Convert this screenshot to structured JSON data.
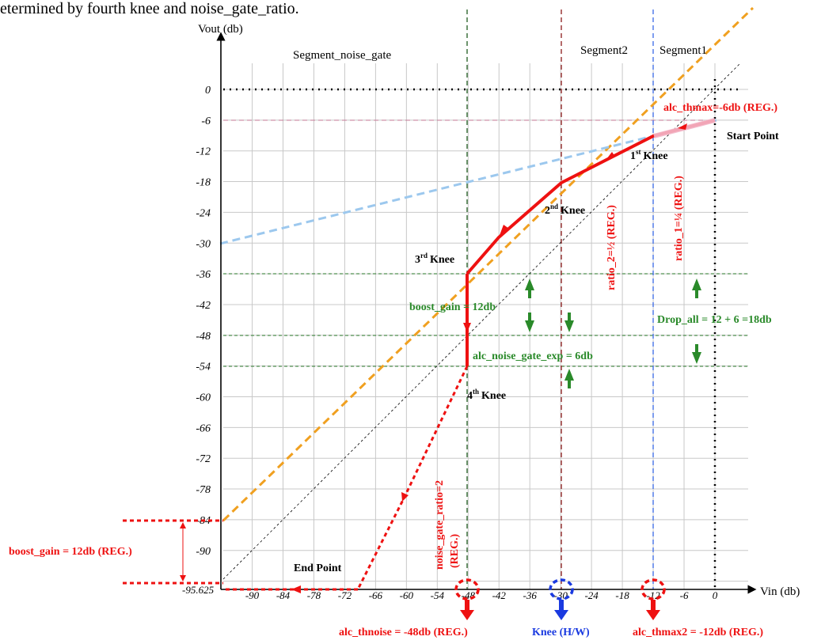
{
  "top_text": "etermined by fourth knee and noise_gate_ratio.",
  "axes": {
    "y_title": "Vout (db)",
    "x_title": "Vin (db)",
    "y_ticks": [
      "0",
      "-6",
      "-12",
      "-18",
      "-24",
      "-30",
      "-36",
      "-42",
      "-48",
      "-54",
      "-60",
      "-66",
      "-72",
      "-78",
      "-84",
      "-90"
    ],
    "x_ticks": [
      "-90",
      "-84",
      "-78",
      "-72",
      "-66",
      "-60",
      "-54",
      "-48",
      "-42",
      "-36",
      "-30",
      "-24",
      "-18",
      "-12",
      "-6",
      "0"
    ],
    "x_origin_label": "-95.625"
  },
  "segments": {
    "noise_gate": "Segment_noise_gate",
    "seg2": "Segment2",
    "seg1": "Segment1"
  },
  "labels": {
    "alc_thmax": "alc_thmax=-6db (REG.)",
    "start_point": "Start Point",
    "knee1": "Knee",
    "knee1_sup": "st",
    "knee1_num": "1",
    "knee2": "Knee",
    "knee2_sup": "nd",
    "knee2_num": "2",
    "knee3": "Knee",
    "knee3_sup": "rd",
    "knee3_num": "3",
    "knee4": "Knee",
    "knee4_sup": "th",
    "knee4_num": "4",
    "ratio2": "ratio_2=½ (REG.)",
    "ratio1": "ratio_1=¼ (REG.)",
    "boost_gain_mid": "boost_gain = 12db",
    "noise_gate_exp": "alc_noise_gate_exp = 6db",
    "drop_all": "Drop_all = 12 + 6 =18db",
    "noise_gate_ratio": "noise_gate_ratio=2",
    "noise_gate_ratio_reg": "(REG.)",
    "boost_gain_left": "boost_gain = 12db (REG.)",
    "end_point": "End Point",
    "alc_thnoise": "alc_thnoise = -48db (REG.)",
    "knee_hw": "Knee (H/W)",
    "alc_thmax2": "alc_thmax2 = -12db (REG.)"
  },
  "colors": {
    "red": "#ee1111",
    "green": "#2a8a2a",
    "blue": "#1a3ae0",
    "orange": "#f0a020",
    "lightblue": "#9cc8ee",
    "darkred": "#8b1a1a",
    "darkgreen": "#1f5c1f",
    "grid": "#bdbdbd"
  }
}
